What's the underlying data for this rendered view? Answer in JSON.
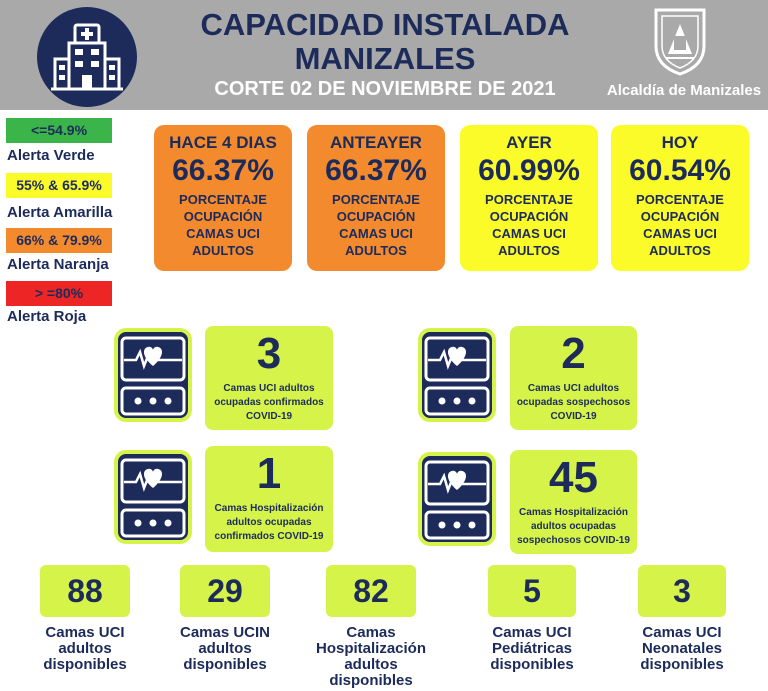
{
  "header": {
    "title_line1": "CAPACIDAD INSTALADA",
    "title_line2": "MANIZALES",
    "subtitle": "CORTE 02 DE NOVIEMBRE  DE 2021",
    "org": "Alcaldía de Manizales",
    "icons": [
      "hospital-icon",
      "manizales-crest-icon"
    ]
  },
  "legend": [
    {
      "range": "<=54.9%",
      "label": "Alerta Verde",
      "color": "#3bb54a"
    },
    {
      "range": "55% & 65.9%",
      "label": "Alerta Amarilla",
      "color": "#fbfb2a"
    },
    {
      "range": "66% & 79.9%",
      "label": "Alerta Naranja",
      "color": "#f48a2e"
    },
    {
      "range": "> =80%",
      "label": "Alerta Roja",
      "color": "#ee2525"
    }
  ],
  "days": [
    {
      "title": "HACE 4 DIAS",
      "value": "66.37%",
      "label_lines": [
        "PORCENTAJE",
        "OCUPACIÓN",
        "CAMAS UCI",
        "ADULTOS"
      ],
      "color": "#f48a2e"
    },
    {
      "title": "ANTEAYER",
      "value": "66.37%",
      "label_lines": [
        "PORCENTAJE",
        "OCUPACIÓN",
        "CAMAS UCI",
        "ADULTOS"
      ],
      "color": "#f48a2e"
    },
    {
      "title": "AYER",
      "value": "60.99%",
      "label_lines": [
        "PORCENTAJE",
        "OCUPACIÓN",
        "CAMAS UCI",
        "ADULTOS"
      ],
      "color": "#fbfb2a"
    },
    {
      "title": "HOY",
      "value": "60.54%",
      "label_lines": [
        "PORCENTAJE",
        "OCUPACIÓN",
        "CAMAS UCI",
        "ADULTOS"
      ],
      "color": "#fbfb2a"
    }
  ],
  "stats": [
    {
      "value": "3",
      "label_lines": [
        "Camas UCI adultos",
        "ocupadas confirmados",
        "COVID-19"
      ]
    },
    {
      "value": "2",
      "label_lines": [
        "Camas UCI adultos",
        "ocupadas sospechosos",
        "COVID-19"
      ]
    },
    {
      "value": "1",
      "label_lines": [
        "Camas  Hospitalización",
        "adultos ocupadas",
        "confirmados COVID-19"
      ]
    },
    {
      "value": "45",
      "label_lines": [
        "Camas Hospitalización",
        "adultos ocupadas",
        "sospechosos COVID-19"
      ]
    }
  ],
  "available": [
    {
      "value": "88",
      "label_lines": [
        "Camas UCI",
        "adultos",
        "disponibles"
      ]
    },
    {
      "value": "29",
      "label_lines": [
        "Camas UCIN",
        "adultos",
        "disponibles"
      ]
    },
    {
      "value": "82",
      "label_lines": [
        "Camas",
        "Hospitalización",
        "adultos",
        "disponibles"
      ]
    },
    {
      "value": "5",
      "label_lines": [
        "Camas  UCI",
        "Pediátricas",
        "disponibles"
      ]
    },
    {
      "value": "3",
      "label_lines": [
        "Camas  UCI",
        "Neonatales",
        "disponibles"
      ]
    }
  ]
}
